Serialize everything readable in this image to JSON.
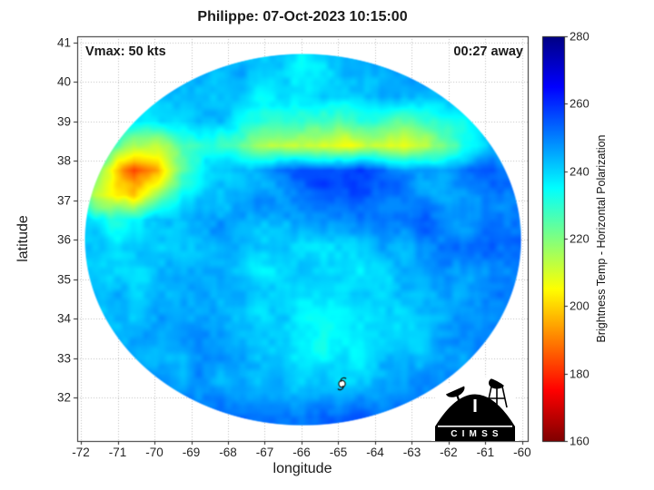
{
  "logo": {
    "text": "C I M S S"
  },
  "chart_data": {
    "type": "heatmap",
    "title": "Philippe: 07-Oct-2023 10:15:00",
    "xlabel": "longitude",
    "ylabel": "latitude",
    "annotations": {
      "vmax": "Vmax: 50 kts",
      "eta": "00:27 away"
    },
    "xlim": [
      -72.1,
      -59.85
    ],
    "ylim": [
      30.9,
      41.15
    ],
    "xticks": [
      -72,
      -71,
      -70,
      -69,
      -68,
      -67,
      -66,
      -65,
      -64,
      -63,
      -62,
      -61,
      -60
    ],
    "yticks": [
      32,
      33,
      34,
      35,
      36,
      37,
      38,
      39,
      40,
      41
    ],
    "grid": true,
    "grid_color": "#bfbfbf",
    "axis_color": "#262626",
    "colorbar": {
      "label": "Brightness Temp - Horizontal Polarization",
      "range": [
        160,
        280
      ],
      "ticks": [
        160,
        180,
        200,
        220,
        240,
        260,
        280
      ]
    },
    "colormap_stops": [
      [
        160,
        "#800000"
      ],
      [
        175,
        "#ff0000"
      ],
      [
        205,
        "#ffff00"
      ],
      [
        220,
        "#80ff80"
      ],
      [
        235,
        "#00ffff"
      ],
      [
        265,
        "#0000ff"
      ],
      [
        280,
        "#000083"
      ]
    ],
    "swath": {
      "center_lon": -65.96,
      "center_lat": 36.0,
      "rx_lon": 5.95,
      "ry_lat": 4.72
    },
    "storm_marker": {
      "lon": -64.9,
      "lat": 32.35
    },
    "bt_grid": {
      "lon_start": -72.5,
      "lon_step": 0.65,
      "lat_start": 41.5,
      "lat_step": -0.625,
      "values": [
        [
          250,
          250,
          250,
          250,
          250,
          250,
          250,
          250,
          250,
          250,
          250,
          250,
          250,
          250,
          250,
          250,
          250,
          250,
          250,
          250,
          250
        ],
        [
          252,
          250,
          249,
          248,
          247,
          246,
          245,
          246,
          245,
          241,
          240,
          243,
          246,
          248,
          248,
          249,
          250,
          251,
          252,
          252,
          252
        ],
        [
          251,
          249,
          247,
          245,
          243,
          242,
          243,
          244,
          242,
          238,
          237,
          240,
          244,
          246,
          247,
          248,
          249,
          250,
          251,
          251,
          251
        ],
        [
          250,
          248,
          245,
          241,
          240,
          241,
          242,
          241,
          239,
          237,
          238,
          240,
          242,
          243,
          242,
          243,
          244,
          246,
          248,
          250,
          251
        ],
        [
          250,
          247,
          244,
          240,
          238,
          240,
          242,
          240,
          234,
          230,
          231,
          228,
          226,
          228,
          224,
          226,
          230,
          235,
          242,
          247,
          250
        ],
        [
          248,
          243,
          232,
          216,
          212,
          222,
          232,
          228,
          218,
          212,
          212,
          210,
          208,
          212,
          210,
          214,
          220,
          232,
          244,
          250,
          252
        ],
        [
          246,
          234,
          208,
          182,
          194,
          224,
          238,
          240,
          246,
          252,
          254,
          256,
          257,
          255,
          251,
          246,
          248,
          252,
          254,
          252,
          250
        ],
        [
          240,
          222,
          204,
          198,
          215,
          235,
          242,
          244,
          246,
          248,
          250,
          254,
          256,
          254,
          252,
          248,
          246,
          246,
          250,
          250,
          249
        ],
        [
          242,
          238,
          232,
          236,
          242,
          244,
          245,
          246,
          245,
          246,
          247,
          248,
          250,
          250,
          252,
          253,
          250,
          248,
          252,
          253,
          250
        ],
        [
          244,
          241,
          238,
          240,
          242,
          243,
          244,
          244,
          243,
          241,
          239,
          238,
          240,
          243,
          245,
          247,
          249,
          252,
          255,
          254,
          250
        ],
        [
          245,
          242,
          240,
          241,
          242,
          243,
          243,
          242,
          238,
          240,
          241,
          238,
          237,
          240,
          243,
          245,
          247,
          249,
          251,
          250,
          248
        ],
        [
          246,
          244,
          242,
          242,
          243,
          244,
          244,
          243,
          241,
          238,
          240,
          242,
          241,
          240,
          240,
          242,
          244,
          246,
          248,
          249,
          248
        ],
        [
          247,
          245,
          243,
          243,
          244,
          244,
          245,
          244,
          242,
          240,
          238,
          237,
          236,
          238,
          240,
          242,
          244,
          246,
          248,
          249,
          249
        ],
        [
          249,
          247,
          245,
          244,
          245,
          245,
          245,
          244,
          243,
          240,
          236,
          234,
          236,
          238,
          241,
          243,
          245,
          247,
          249,
          250,
          250
        ],
        [
          250,
          249,
          247,
          246,
          246,
          246,
          246,
          246,
          245,
          243,
          241,
          240,
          238,
          241,
          244,
          246,
          248,
          249,
          250,
          251,
          251
        ],
        [
          251,
          250,
          249,
          248,
          248,
          247,
          247,
          247,
          246,
          245,
          244,
          243,
          243,
          245,
          247,
          248,
          249,
          250,
          251,
          251,
          251
        ],
        [
          252,
          252,
          252,
          252,
          252,
          252,
          252,
          252,
          252,
          252,
          252,
          252,
          252,
          252,
          252,
          252,
          252,
          252,
          252,
          252,
          252
        ]
      ]
    }
  }
}
